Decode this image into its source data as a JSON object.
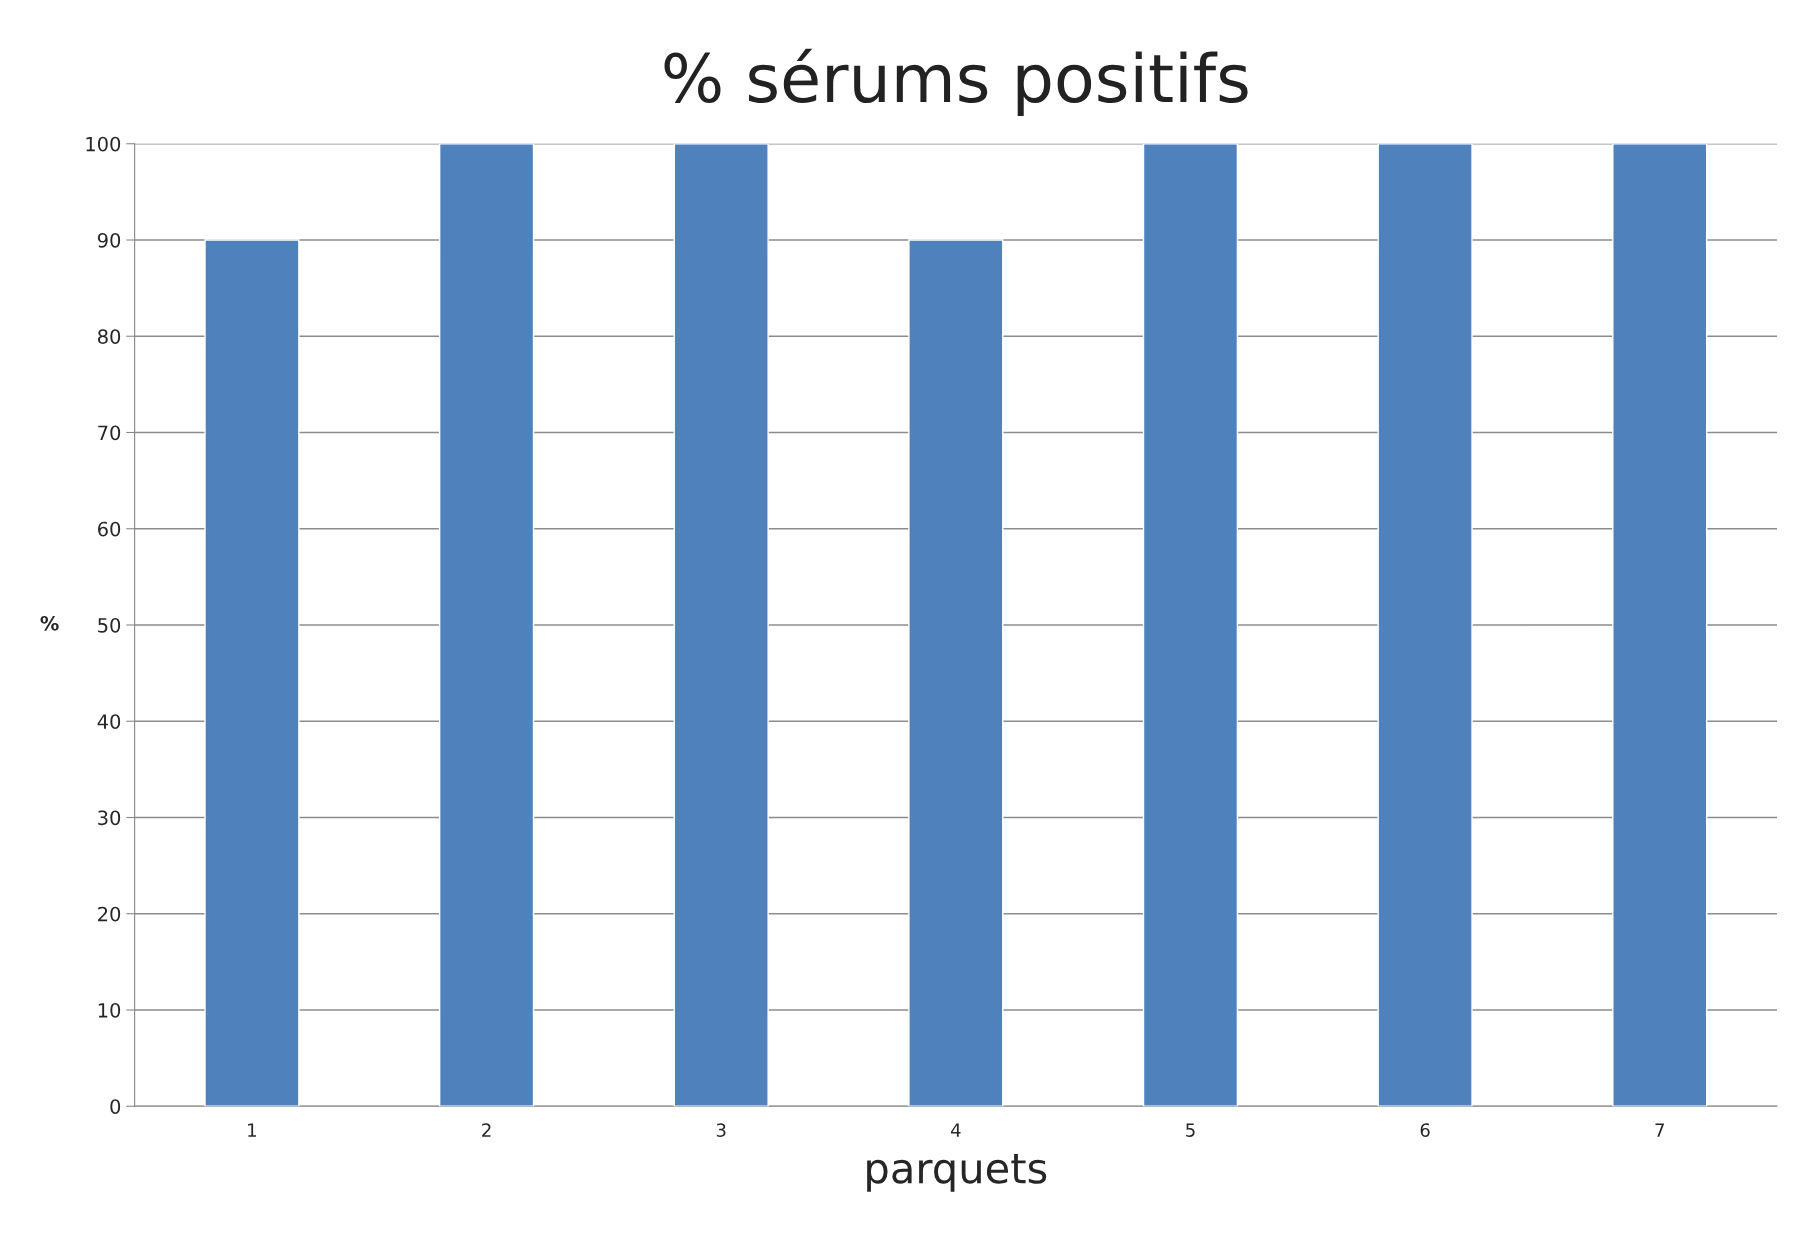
{
  "chart_data": {
    "type": "bar",
    "title": "% sérums positifs",
    "xlabel": "parquets",
    "ylabel": "%",
    "categories": [
      "1",
      "2",
      "3",
      "4",
      "5",
      "6",
      "7"
    ],
    "values": [
      90,
      100,
      100,
      90,
      100,
      100,
      100
    ],
    "color": "#4f81bd",
    "ylim": [
      0,
      100
    ],
    "yticks": [
      0,
      10,
      20,
      30,
      40,
      50,
      60,
      70,
      80,
      90,
      100
    ],
    "grid": "y",
    "legend": false
  }
}
